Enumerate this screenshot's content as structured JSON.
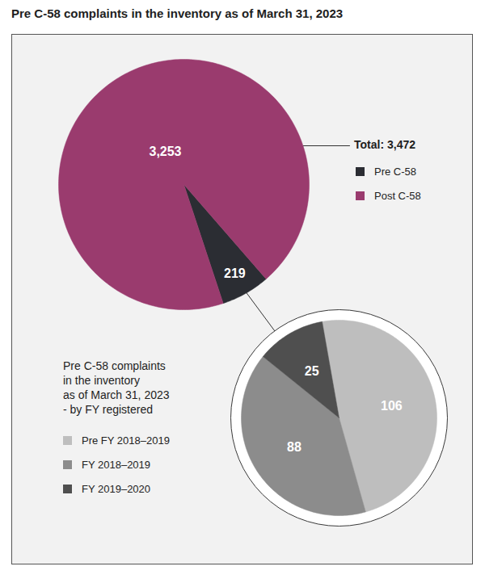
{
  "chart_data": [
    {
      "type": "pie",
      "title": "Pre C-58 complaints in the inventory as of March 31, 2023",
      "categories": [
        "Pre C-58",
        "Post C-58"
      ],
      "values": [
        219,
        3253
      ],
      "value_labels": [
        "219",
        "3,253"
      ],
      "colors": [
        "#2b2d33",
        "#9a3b6e"
      ],
      "data_labels": true,
      "legend": "right",
      "annotations": [
        "Total: 3,472"
      ]
    },
    {
      "type": "pie",
      "title": "Pre C-58 complaints\nin the inventory\nas of March 31, 2023\n- by FY registered",
      "categories": [
        "Pre FY 2018–2019",
        "FY 2018–2019",
        "FY 2019–2020"
      ],
      "values": [
        106,
        88,
        25
      ],
      "colors": [
        "#bebebe",
        "#8c8c8c",
        "#4f4f4f"
      ],
      "data_labels": true,
      "legend": "left"
    }
  ]
}
